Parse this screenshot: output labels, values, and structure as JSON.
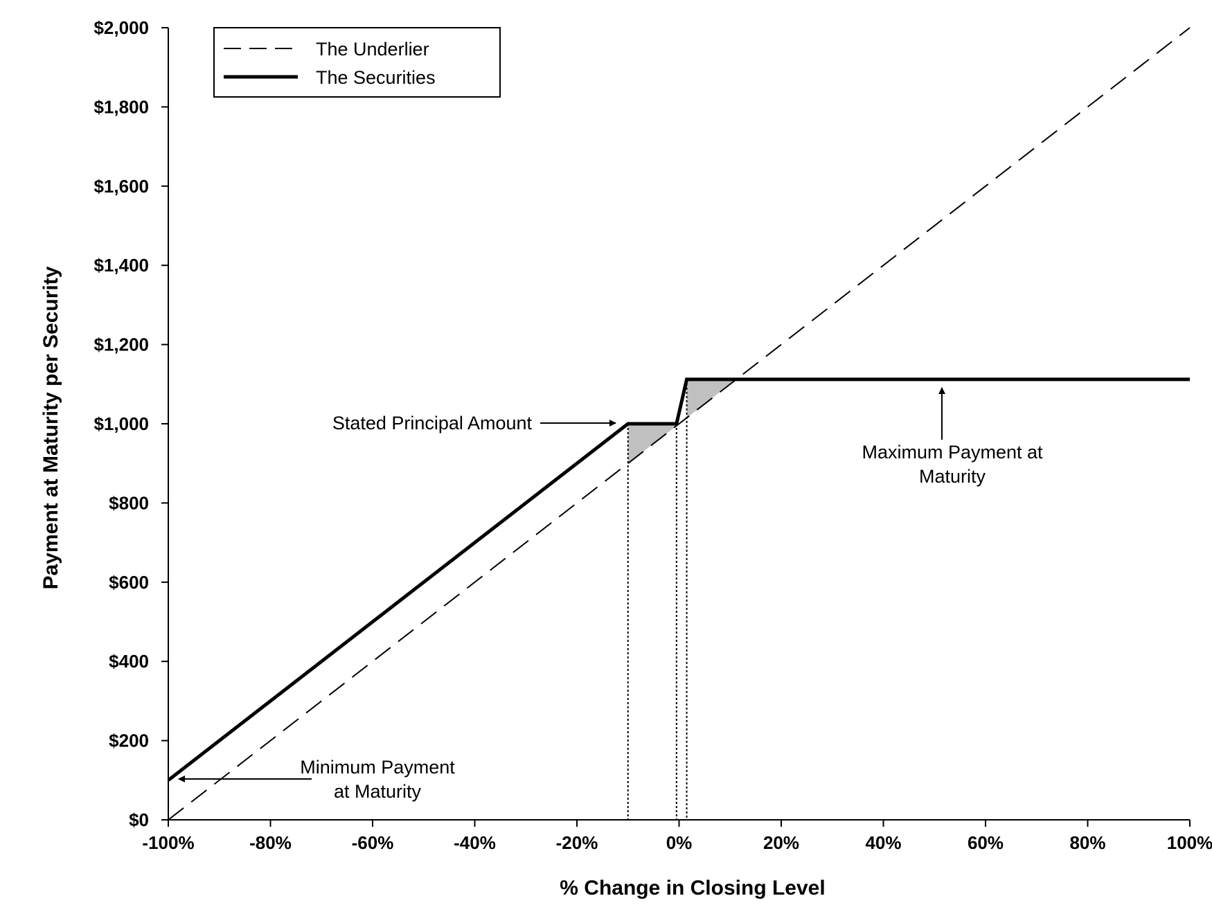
{
  "chart_data": {
    "type": "line",
    "title": "",
    "xlabel": "% Change in Closing Level",
    "ylabel": "Payment at Maturity per Security",
    "xlim": [
      -100,
      100
    ],
    "ylim": [
      0,
      2000
    ],
    "x_ticks": [
      -100,
      -80,
      -60,
      -40,
      -20,
      0,
      20,
      40,
      60,
      80,
      100
    ],
    "x_tick_labels": [
      "-100%",
      "-80%",
      "-60%",
      "-40%",
      "-20%",
      "0%",
      "20%",
      "40%",
      "60%",
      "80%",
      "100%"
    ],
    "y_ticks": [
      0,
      200,
      400,
      600,
      800,
      1000,
      1200,
      1400,
      1600,
      1800,
      2000
    ],
    "y_tick_labels": [
      "$0",
      "$200",
      "$400",
      "$600",
      "$800",
      "$1,000",
      "$1,200",
      "$1,400",
      "$1,600",
      "$1,800",
      "$2,000"
    ],
    "grid": false,
    "legend": {
      "placement": "top-left",
      "entries": [
        "The Underlier",
        "The Securities"
      ]
    },
    "series": [
      {
        "name": "The Underlier",
        "style": "dashed",
        "color": "#000000",
        "x": [
          -100,
          100
        ],
        "y": [
          0,
          2000
        ]
      },
      {
        "name": "The Securities",
        "style": "solid-thick",
        "color": "#000000",
        "x": [
          -100,
          -10,
          -0.5,
          1.5,
          100
        ],
        "y": [
          100,
          1000,
          1000,
          1112,
          1112
        ]
      }
    ],
    "shaded_regions": [
      {
        "color": "#c0c0c0",
        "points": [
          [
            -10,
            1000
          ],
          [
            -0.5,
            1000
          ],
          [
            -0.5,
            995
          ],
          [
            -10,
            900
          ]
        ]
      },
      {
        "color": "#c0c0c0",
        "points": [
          [
            1.5,
            1112
          ],
          [
            11.2,
            1112
          ],
          [
            1.5,
            1015
          ]
        ]
      }
    ],
    "reference_lines": [
      {
        "style": "dotted",
        "x": -10,
        "y_top": 1000
      },
      {
        "style": "dotted",
        "x": -0.5,
        "y_top": 1000
      },
      {
        "style": "dotted",
        "x": 1.5,
        "y_top": 1112
      }
    ],
    "annotations": {
      "stated_principal": "Stated Principal Amount",
      "max_payment_line1": "Maximum Payment at",
      "max_payment_line2": "Maturity",
      "min_payment_line1": "Minimum Payment",
      "min_payment_line2": "at Maturity"
    }
  }
}
